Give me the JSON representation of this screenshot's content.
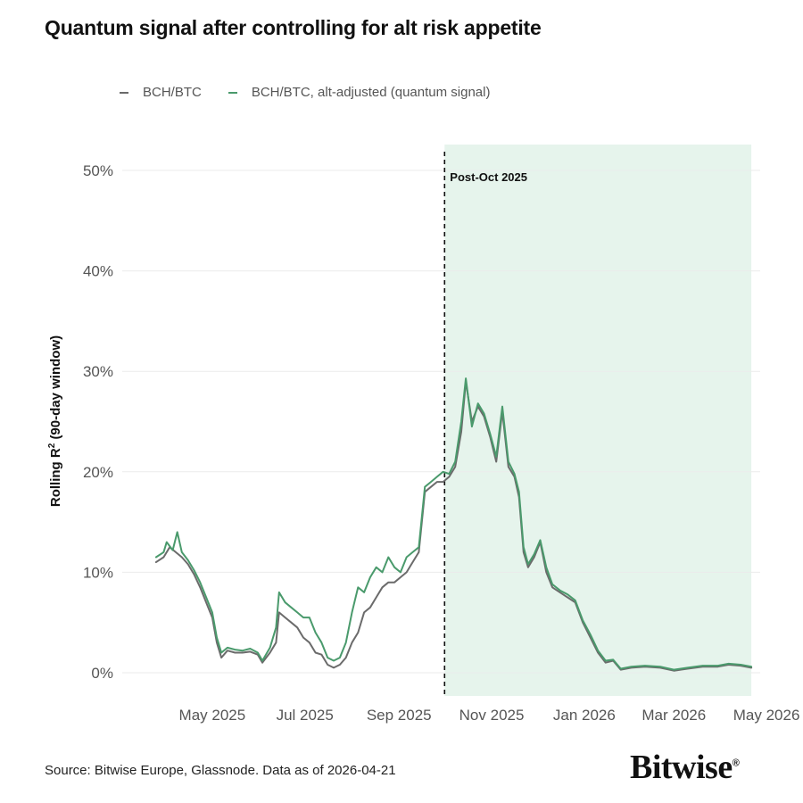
{
  "chart_data": {
    "type": "line",
    "title": "Quantum signal after controlling for alt risk appetite",
    "ylabel": "Rolling R",
    "ylabel_sup": "2",
    "ylabel_suffix": " (90-day window)",
    "ylim": [
      0,
      52.5
    ],
    "yticks": [
      0,
      10,
      20,
      30,
      40,
      50
    ],
    "ytick_labels": [
      "0%",
      "10%",
      "20%",
      "30%",
      "40%",
      "50%"
    ],
    "xlim": [
      "2025-03-18",
      "2026-04-28"
    ],
    "xticks": [
      "2025-05-01",
      "2025-07-01",
      "2025-09-01",
      "2025-11-01",
      "2026-01-01",
      "2026-03-01",
      "2026-05-01"
    ],
    "xtick_labels": [
      "May 2025",
      "Jul 2025",
      "Sep 2025",
      "Nov 2025",
      "Jan 2026",
      "Mar 2026",
      "May 2026"
    ],
    "grid": "horizontal",
    "legend_position": "top-left",
    "annotation": {
      "label": "Post-Oct 2025",
      "date": "2025-10-01",
      "shaded_start": "2025-10-01",
      "shaded_end": "2026-04-21",
      "shade_color": "#e6f4ec"
    },
    "series": [
      {
        "name": "BCH/BTC",
        "color": "#6b6b6b",
        "points": [
          [
            "2025-03-25",
            11.0
          ],
          [
            "2025-03-30",
            11.5
          ],
          [
            "2025-04-03",
            12.5
          ],
          [
            "2025-04-07",
            12.0
          ],
          [
            "2025-04-11",
            11.5
          ],
          [
            "2025-04-15",
            10.8
          ],
          [
            "2025-04-19",
            9.8
          ],
          [
            "2025-04-23",
            8.5
          ],
          [
            "2025-04-27",
            7.0
          ],
          [
            "2025-05-01",
            5.5
          ],
          [
            "2025-05-04",
            3.0
          ],
          [
            "2025-05-07",
            1.5
          ],
          [
            "2025-05-11",
            2.2
          ],
          [
            "2025-05-16",
            2.0
          ],
          [
            "2025-05-21",
            2.0
          ],
          [
            "2025-05-26",
            2.1
          ],
          [
            "2025-05-31",
            1.8
          ],
          [
            "2025-06-03",
            1.0
          ],
          [
            "2025-06-08",
            2.0
          ],
          [
            "2025-06-12",
            3.0
          ],
          [
            "2025-06-14",
            6.0
          ],
          [
            "2025-06-18",
            5.5
          ],
          [
            "2025-06-22",
            5.0
          ],
          [
            "2025-06-26",
            4.5
          ],
          [
            "2025-06-30",
            3.5
          ],
          [
            "2025-07-04",
            3.0
          ],
          [
            "2025-07-08",
            2.0
          ],
          [
            "2025-07-12",
            1.8
          ],
          [
            "2025-07-16",
            0.8
          ],
          [
            "2025-07-20",
            0.5
          ],
          [
            "2025-07-24",
            0.8
          ],
          [
            "2025-07-28",
            1.5
          ],
          [
            "2025-08-01",
            3.0
          ],
          [
            "2025-08-05",
            4.0
          ],
          [
            "2025-08-09",
            6.0
          ],
          [
            "2025-08-13",
            6.5
          ],
          [
            "2025-08-17",
            7.5
          ],
          [
            "2025-08-21",
            8.5
          ],
          [
            "2025-08-25",
            9.0
          ],
          [
            "2025-08-29",
            9.0
          ],
          [
            "2025-09-02",
            9.5
          ],
          [
            "2025-09-06",
            10.0
          ],
          [
            "2025-09-10",
            11.0
          ],
          [
            "2025-09-14",
            12.0
          ],
          [
            "2025-09-18",
            18.0
          ],
          [
            "2025-09-22",
            18.5
          ],
          [
            "2025-09-26",
            19.0
          ],
          [
            "2025-09-30",
            19.0
          ],
          [
            "2025-10-04",
            19.5
          ],
          [
            "2025-10-08",
            20.5
          ],
          [
            "2025-10-12",
            24.0
          ],
          [
            "2025-10-15",
            29.0
          ],
          [
            "2025-10-19",
            25.0
          ],
          [
            "2025-10-23",
            26.5
          ],
          [
            "2025-10-27",
            25.5
          ],
          [
            "2025-10-31",
            23.5
          ],
          [
            "2025-11-04",
            21.0
          ],
          [
            "2025-11-08",
            26.0
          ],
          [
            "2025-11-12",
            20.5
          ],
          [
            "2025-11-16",
            19.5
          ],
          [
            "2025-11-19",
            17.5
          ],
          [
            "2025-11-22",
            12.0
          ],
          [
            "2025-11-25",
            10.5
          ],
          [
            "2025-11-29",
            11.5
          ],
          [
            "2025-12-03",
            13.0
          ],
          [
            "2025-12-07",
            10.0
          ],
          [
            "2025-12-11",
            8.5
          ],
          [
            "2025-12-16",
            8.0
          ],
          [
            "2025-12-21",
            7.5
          ],
          [
            "2025-12-26",
            7.0
          ],
          [
            "2025-12-31",
            5.0
          ],
          [
            "2026-01-05",
            3.5
          ],
          [
            "2026-01-10",
            2.0
          ],
          [
            "2026-01-15",
            1.0
          ],
          [
            "2026-01-20",
            1.2
          ],
          [
            "2026-01-25",
            0.3
          ],
          [
            "2026-02-01",
            0.5
          ],
          [
            "2026-02-10",
            0.6
          ],
          [
            "2026-02-20",
            0.5
          ],
          [
            "2026-03-01",
            0.2
          ],
          [
            "2026-03-10",
            0.4
          ],
          [
            "2026-03-20",
            0.6
          ],
          [
            "2026-03-30",
            0.6
          ],
          [
            "2026-04-06",
            0.8
          ],
          [
            "2026-04-14",
            0.7
          ],
          [
            "2026-04-21",
            0.5
          ]
        ]
      },
      {
        "name": "BCH/BTC, alt-adjusted (quantum signal)",
        "color": "#4a9a6c",
        "points": [
          [
            "2025-03-25",
            11.5
          ],
          [
            "2025-03-30",
            12.0
          ],
          [
            "2025-04-01",
            13.0
          ],
          [
            "2025-04-05",
            12.2
          ],
          [
            "2025-04-08",
            14.0
          ],
          [
            "2025-04-11",
            12.0
          ],
          [
            "2025-04-15",
            11.2
          ],
          [
            "2025-04-19",
            10.2
          ],
          [
            "2025-04-23",
            9.0
          ],
          [
            "2025-04-27",
            7.5
          ],
          [
            "2025-05-01",
            6.0
          ],
          [
            "2025-05-04",
            3.5
          ],
          [
            "2025-05-07",
            2.0
          ],
          [
            "2025-05-11",
            2.5
          ],
          [
            "2025-05-16",
            2.3
          ],
          [
            "2025-05-21",
            2.2
          ],
          [
            "2025-05-26",
            2.4
          ],
          [
            "2025-05-31",
            2.0
          ],
          [
            "2025-06-03",
            1.2
          ],
          [
            "2025-06-08",
            2.5
          ],
          [
            "2025-06-12",
            4.5
          ],
          [
            "2025-06-14",
            8.0
          ],
          [
            "2025-06-18",
            7.0
          ],
          [
            "2025-06-22",
            6.5
          ],
          [
            "2025-06-26",
            6.0
          ],
          [
            "2025-06-30",
            5.5
          ],
          [
            "2025-07-04",
            5.5
          ],
          [
            "2025-07-08",
            4.0
          ],
          [
            "2025-07-12",
            3.0
          ],
          [
            "2025-07-16",
            1.5
          ],
          [
            "2025-07-20",
            1.2
          ],
          [
            "2025-07-24",
            1.5
          ],
          [
            "2025-07-28",
            3.0
          ],
          [
            "2025-08-01",
            6.0
          ],
          [
            "2025-08-05",
            8.5
          ],
          [
            "2025-08-09",
            8.0
          ],
          [
            "2025-08-13",
            9.5
          ],
          [
            "2025-08-17",
            10.5
          ],
          [
            "2025-08-21",
            10.0
          ],
          [
            "2025-08-25",
            11.5
          ],
          [
            "2025-08-29",
            10.5
          ],
          [
            "2025-09-02",
            10.0
          ],
          [
            "2025-09-06",
            11.5
          ],
          [
            "2025-09-10",
            12.0
          ],
          [
            "2025-09-14",
            12.5
          ],
          [
            "2025-09-18",
            18.5
          ],
          [
            "2025-09-22",
            19.0
          ],
          [
            "2025-09-26",
            19.5
          ],
          [
            "2025-09-30",
            20.0
          ],
          [
            "2025-10-04",
            19.8
          ],
          [
            "2025-10-08",
            21.0
          ],
          [
            "2025-10-12",
            25.0
          ],
          [
            "2025-10-15",
            29.3
          ],
          [
            "2025-10-19",
            24.5
          ],
          [
            "2025-10-23",
            26.8
          ],
          [
            "2025-10-27",
            25.8
          ],
          [
            "2025-10-31",
            23.8
          ],
          [
            "2025-11-04",
            21.5
          ],
          [
            "2025-11-08",
            26.5
          ],
          [
            "2025-11-12",
            21.0
          ],
          [
            "2025-11-16",
            19.8
          ],
          [
            "2025-11-19",
            18.0
          ],
          [
            "2025-11-22",
            12.5
          ],
          [
            "2025-11-25",
            10.8
          ],
          [
            "2025-11-29",
            11.8
          ],
          [
            "2025-12-03",
            13.2
          ],
          [
            "2025-12-07",
            10.5
          ],
          [
            "2025-12-11",
            8.8
          ],
          [
            "2025-12-16",
            8.2
          ],
          [
            "2025-12-21",
            7.8
          ],
          [
            "2025-12-26",
            7.2
          ],
          [
            "2025-12-31",
            5.2
          ],
          [
            "2026-01-05",
            3.8
          ],
          [
            "2026-01-10",
            2.2
          ],
          [
            "2026-01-15",
            1.2
          ],
          [
            "2026-01-20",
            1.3
          ],
          [
            "2026-01-25",
            0.4
          ],
          [
            "2026-02-01",
            0.6
          ],
          [
            "2026-02-10",
            0.7
          ],
          [
            "2026-02-20",
            0.6
          ],
          [
            "2026-03-01",
            0.3
          ],
          [
            "2026-03-10",
            0.5
          ],
          [
            "2026-03-20",
            0.7
          ],
          [
            "2026-03-30",
            0.7
          ],
          [
            "2026-04-06",
            0.9
          ],
          [
            "2026-04-14",
            0.8
          ],
          [
            "2026-04-21",
            0.6
          ]
        ]
      }
    ]
  },
  "source": "Source: Bitwise Europe, Glassnode. Data as of 2026-04-21",
  "logo": {
    "text": "Bitwise",
    "mark": "®"
  }
}
